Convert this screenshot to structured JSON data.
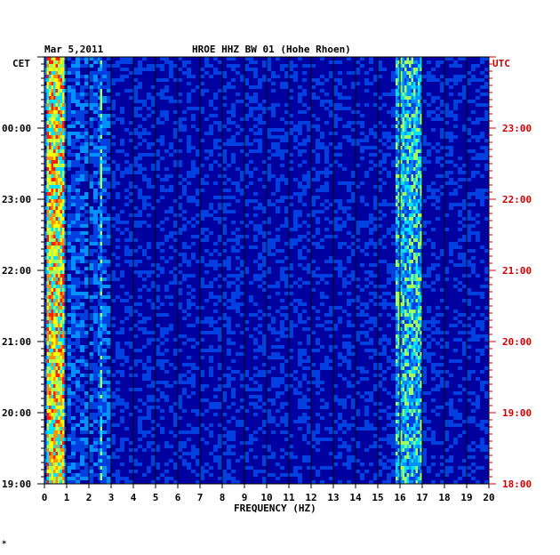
{
  "header": {
    "date": "Mar 5,2011",
    "station_title": "HROE HHZ BW 01 (Hohe Rhoen)"
  },
  "left_axis": {
    "timezone": "CET",
    "tick_labels": [
      "00:00",
      "23:00",
      "22:00",
      "21:00",
      "20:00",
      "19:00"
    ]
  },
  "right_axis": {
    "timezone": "UTC",
    "tick_labels": [
      "23:00",
      "22:00",
      "21:00",
      "20:00",
      "19:00",
      "18:00"
    ]
  },
  "footer_mark": "*",
  "chart_data": {
    "type": "heatmap",
    "title": "HROE HHZ BW 01 (Hohe Rhoen)",
    "subtitle": "Mar 5,2011",
    "xlabel": "FREQUENCY (HZ)",
    "ylabel_left": "CET",
    "ylabel_right": "UTC",
    "x_range": [
      0,
      20
    ],
    "x_ticks": [
      0,
      1,
      2,
      3,
      4,
      5,
      6,
      7,
      8,
      9,
      10,
      11,
      12,
      13,
      14,
      15,
      16,
      17,
      18,
      19,
      20
    ],
    "y_ticks_cet": [
      "00:00",
      "23:00",
      "22:00",
      "21:00",
      "20:00",
      "19:00"
    ],
    "y_ticks_utc": [
      "23:00",
      "22:00",
      "21:00",
      "20:00",
      "19:00",
      "18:00"
    ],
    "grid": true,
    "colors": {
      "background": "#0000a0",
      "low": "#0010c8",
      "mid": "#00c8ff",
      "high": "#ffff00",
      "peak": "#ff0000",
      "utc_axis": "#cc0000",
      "cet_axis": "#000000",
      "gridline": "#000000"
    },
    "dominant_bands_hz": [
      {
        "from": 0.1,
        "to": 0.9,
        "level": "high"
      },
      {
        "from": 2.5,
        "to": 2.6,
        "level": "mid"
      },
      {
        "from": 15.8,
        "to": 17.0,
        "level": "mid"
      }
    ]
  }
}
